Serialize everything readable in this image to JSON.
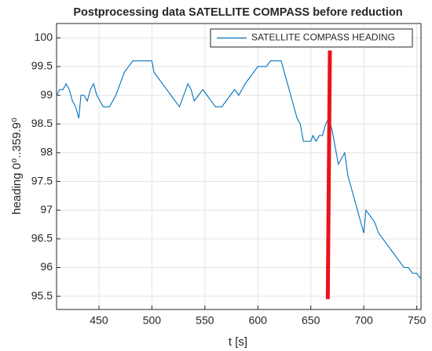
{
  "chart_data": {
    "type": "line",
    "title": "Postprocessing data SATELLITE COMPASS before reduction",
    "xlabel": "t [s]",
    "ylabel": "heading 0⁰..359.9⁰",
    "x": [
      410,
      413,
      416,
      419,
      422,
      425,
      428,
      431,
      433,
      436,
      439,
      442,
      445,
      448,
      451,
      454,
      460,
      463,
      466,
      470,
      474,
      478,
      482,
      500,
      502,
      506,
      510,
      514,
      518,
      522,
      526,
      530,
      534,
      537,
      540,
      544,
      548,
      552,
      556,
      560,
      566,
      570,
      574,
      578,
      582,
      588,
      592,
      596,
      600,
      604,
      608,
      612,
      622,
      625,
      628,
      631,
      634,
      637,
      640,
      643,
      650,
      652,
      655,
      658,
      661,
      664,
      667,
      670,
      673,
      676,
      679,
      682,
      685,
      688,
      691,
      694,
      697,
      700,
      702,
      706,
      710,
      714,
      718,
      722,
      726,
      730,
      734,
      738,
      742,
      746,
      750,
      754
    ],
    "series": [
      {
        "name": "SATELLITE COMPASS HEADING",
        "color": "#0072bd",
        "values": [
          99.0,
          99.1,
          99.1,
          99.2,
          99.1,
          98.9,
          98.8,
          98.6,
          99.0,
          99.0,
          98.9,
          99.1,
          99.2,
          99.0,
          98.9,
          98.8,
          98.8,
          98.9,
          99.0,
          99.2,
          99.4,
          99.5,
          99.6,
          99.6,
          99.4,
          99.3,
          99.2,
          99.1,
          99.0,
          98.9,
          98.8,
          99.0,
          99.2,
          99.1,
          98.9,
          99.0,
          99.1,
          99.0,
          98.9,
          98.8,
          98.8,
          98.9,
          99.0,
          99.1,
          99.0,
          99.2,
          99.3,
          99.4,
          99.5,
          99.5,
          99.5,
          99.6,
          99.6,
          99.4,
          99.2,
          99.0,
          98.8,
          98.6,
          98.5,
          98.2,
          98.2,
          98.3,
          98.2,
          98.3,
          98.3,
          98.5,
          98.6,
          98.4,
          98.1,
          97.8,
          97.9,
          98.0,
          97.6,
          97.4,
          97.2,
          97.0,
          96.8,
          96.6,
          97.0,
          96.9,
          96.8,
          96.6,
          96.5,
          96.4,
          96.3,
          96.2,
          96.1,
          96.0,
          96.0,
          95.9,
          95.9,
          95.8
        ]
      }
    ],
    "marker_line": {
      "x": [
        668,
        666
      ],
      "y": [
        99.78,
        95.45
      ],
      "color": "#e8141c"
    },
    "xlim": [
      410,
      754
    ],
    "ylim": [
      95.27,
      100.25
    ],
    "xticks": [
      450,
      500,
      550,
      600,
      650,
      700,
      750
    ],
    "yticks": [
      95.5,
      96,
      96.5,
      97,
      97.5,
      98,
      98.5,
      99,
      99.5,
      100
    ],
    "grid": true,
    "legend": "upper right"
  }
}
